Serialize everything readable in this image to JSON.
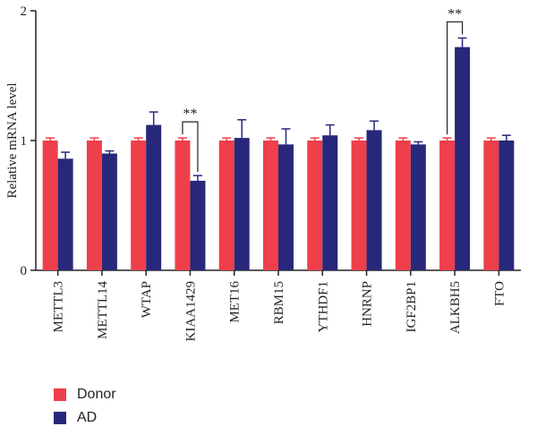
{
  "chart_data": {
    "type": "bar",
    "ylabel": "Relative mRNA level",
    "xlabel": "",
    "ylim": [
      0,
      2
    ],
    "yticks": [
      "0",
      "1",
      "2"
    ],
    "categories": [
      "METTL3",
      "METTL14",
      "WTAP",
      "KIAA1429",
      "MET16",
      "RBM15",
      "YTHDF1",
      "HNRNP",
      "IGF2BP1",
      "ALKBH5",
      "FTO"
    ],
    "series": [
      {
        "name": "Donor",
        "color": "#ee3f4a",
        "values": [
          1.0,
          1.0,
          1.0,
          1.0,
          1.0,
          1.0,
          1.0,
          1.0,
          1.0,
          1.0,
          1.0
        ],
        "errors": [
          0.02,
          0.02,
          0.02,
          0.02,
          0.02,
          0.02,
          0.02,
          0.02,
          0.02,
          0.02,
          0.02
        ]
      },
      {
        "name": "AD",
        "color": "#28287a",
        "values": [
          0.86,
          0.9,
          1.12,
          0.69,
          1.02,
          0.97,
          1.04,
          1.08,
          0.97,
          1.72,
          1.0
        ],
        "errors": [
          0.05,
          0.02,
          0.1,
          0.04,
          0.14,
          0.12,
          0.08,
          0.07,
          0.02,
          0.07,
          0.04
        ]
      }
    ],
    "annotations": [
      {
        "category_index": 3,
        "text": "**"
      },
      {
        "category_index": 9,
        "text": "**"
      }
    ],
    "legend_position": "bottom-left",
    "grid": false
  }
}
